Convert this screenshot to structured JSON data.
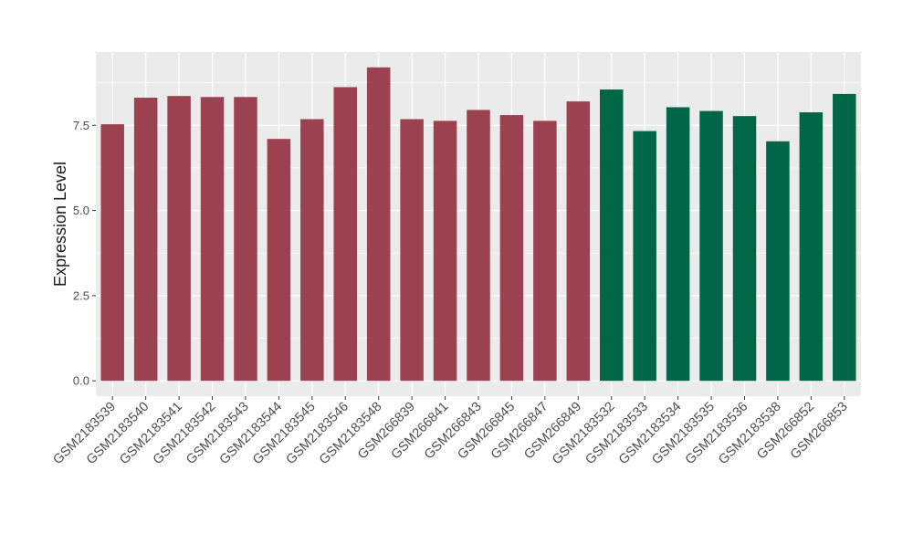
{
  "chart_data": {
    "type": "bar",
    "title": "",
    "xlabel": "",
    "ylabel": "Expression Level",
    "ylim": [
      -0.45,
      9.65
    ],
    "yticks": [
      0.0,
      2.5,
      5.0,
      7.5
    ],
    "ytick_labels": [
      "0.0",
      "2.5",
      "5.0",
      "7.5"
    ],
    "grid": true,
    "legend": "none",
    "categories": [
      "GSM2183539",
      "GSM2183540",
      "GSM2183541",
      "GSM2183542",
      "GSM2183543",
      "GSM2183544",
      "GSM2183545",
      "GSM2183546",
      "GSM2183548",
      "GSM266839",
      "GSM266841",
      "GSM266843",
      "GSM266845",
      "GSM266847",
      "GSM266849",
      "GSM2183532",
      "GSM2183533",
      "GSM2183534",
      "GSM2183535",
      "GSM2183536",
      "GSM2183538",
      "GSM266852",
      "GSM266853"
    ],
    "values": [
      7.53,
      8.31,
      8.36,
      8.33,
      8.33,
      7.1,
      7.68,
      8.62,
      9.2,
      7.68,
      7.63,
      7.95,
      7.8,
      7.63,
      8.2,
      8.55,
      7.33,
      8.03,
      7.92,
      7.77,
      7.03,
      7.88,
      8.42
    ],
    "groups": [
      "a",
      "a",
      "a",
      "a",
      "a",
      "a",
      "a",
      "a",
      "a",
      "a",
      "a",
      "a",
      "a",
      "a",
      "a",
      "b",
      "b",
      "b",
      "b",
      "b",
      "b",
      "b",
      "b"
    ],
    "colors": {
      "a": "#9b4150",
      "b": "#006646",
      "panel": "#ebebeb",
      "grid": "#ffffff",
      "text": "#1a1a1a",
      "tick_text": "#4d4d4d"
    }
  }
}
